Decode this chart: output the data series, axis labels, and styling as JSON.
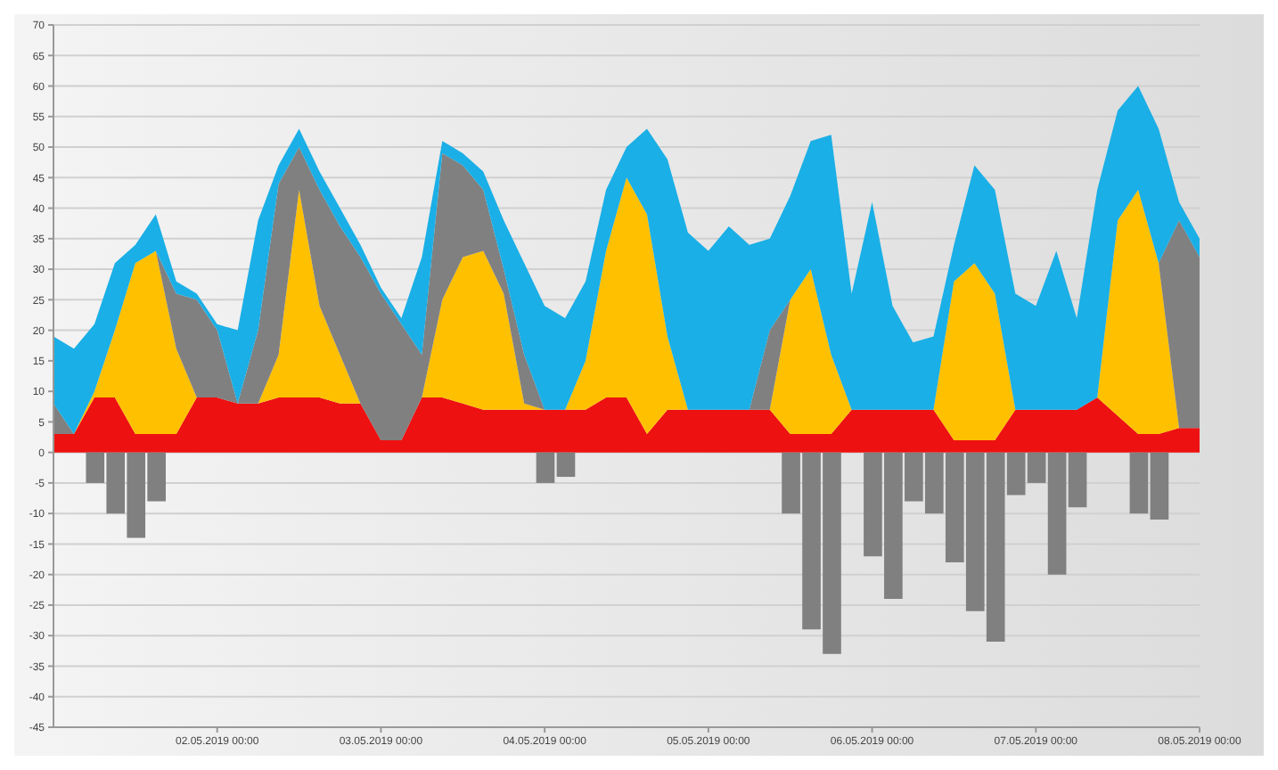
{
  "chart_data": {
    "type": "area",
    "stacked": true,
    "grid": "y",
    "ylim": [
      -45,
      70
    ],
    "yticks": [
      -45,
      -40,
      -35,
      -30,
      -25,
      -20,
      -15,
      -10,
      -5,
      0,
      5,
      10,
      15,
      20,
      25,
      30,
      35,
      40,
      45,
      50,
      55,
      60,
      65,
      70
    ],
    "xlim": [
      "2019-05-01T00:00",
      "2019-05-08T00:00"
    ],
    "xticks": [
      {
        "value": "2019-05-02T00:00",
        "label": "02.05.2019 00:00"
      },
      {
        "value": "2019-05-03T00:00",
        "label": "03.05.2019 00:00"
      },
      {
        "value": "2019-05-04T00:00",
        "label": "04.05.2019 00:00"
      },
      {
        "value": "2019-05-05T00:00",
        "label": "05.05.2019 00:00"
      },
      {
        "value": "2019-05-06T00:00",
        "label": "06.05.2019 00:00"
      },
      {
        "value": "2019-05-07T00:00",
        "label": "07.05.2019 00:00"
      },
      {
        "value": "2019-05-08T00:00",
        "label": "08.05.2019 00:00"
      }
    ],
    "x": [
      "2019-05-01T00:00",
      "2019-05-01T03:00",
      "2019-05-01T06:00",
      "2019-05-01T09:00",
      "2019-05-01T12:00",
      "2019-05-01T15:00",
      "2019-05-01T18:00",
      "2019-05-01T21:00",
      "2019-05-02T00:00",
      "2019-05-02T03:00",
      "2019-05-02T06:00",
      "2019-05-02T09:00",
      "2019-05-02T12:00",
      "2019-05-02T15:00",
      "2019-05-02T18:00",
      "2019-05-02T21:00",
      "2019-05-03T00:00",
      "2019-05-03T03:00",
      "2019-05-03T06:00",
      "2019-05-03T09:00",
      "2019-05-03T12:00",
      "2019-05-03T15:00",
      "2019-05-03T18:00",
      "2019-05-03T21:00",
      "2019-05-04T00:00",
      "2019-05-04T03:00",
      "2019-05-04T06:00",
      "2019-05-04T09:00",
      "2019-05-04T12:00",
      "2019-05-04T15:00",
      "2019-05-04T18:00",
      "2019-05-04T21:00",
      "2019-05-05T00:00",
      "2019-05-05T03:00",
      "2019-05-05T06:00",
      "2019-05-05T09:00",
      "2019-05-05T12:00",
      "2019-05-05T15:00",
      "2019-05-05T18:00",
      "2019-05-05T21:00",
      "2019-05-06T00:00",
      "2019-05-06T03:00",
      "2019-05-06T06:00",
      "2019-05-06T09:00",
      "2019-05-06T12:00",
      "2019-05-06T15:00",
      "2019-05-06T18:00",
      "2019-05-06T21:00",
      "2019-05-07T00:00",
      "2019-05-07T03:00",
      "2019-05-07T06:00",
      "2019-05-07T09:00",
      "2019-05-07T12:00",
      "2019-05-07T15:00",
      "2019-05-07T18:00",
      "2019-05-07T21:00",
      "2019-05-08T00:00"
    ],
    "series": [
      {
        "color": "#ee1111",
        "values": [
          3,
          3,
          9,
          9,
          3,
          3,
          3,
          9,
          9,
          8,
          8,
          9,
          9,
          9,
          8,
          8,
          2,
          2,
          9,
          9,
          8,
          7,
          7,
          7,
          7,
          7,
          7,
          9,
          9,
          3,
          7,
          7,
          7,
          7,
          7,
          7,
          3,
          3,
          3,
          7,
          7,
          7,
          7,
          7,
          2,
          2,
          2,
          7,
          7,
          7,
          7,
          9,
          6,
          3,
          3,
          4,
          4
        ]
      },
      {
        "color": "#ffc000",
        "values": [
          0,
          0,
          1,
          11,
          28,
          30,
          14,
          0,
          0,
          0,
          0,
          7,
          34,
          15,
          8,
          0,
          0,
          0,
          0,
          16,
          24,
          26,
          19,
          1,
          0,
          0,
          8,
          24,
          36,
          36,
          12,
          0,
          0,
          0,
          0,
          0,
          22,
          27,
          13,
          0,
          0,
          0,
          0,
          0,
          26,
          29,
          24,
          0,
          0,
          0,
          0,
          0,
          32,
          40,
          28,
          0,
          0
        ]
      },
      {
        "color": "#808080",
        "values": [
          5,
          0,
          0,
          0,
          0,
          0,
          9,
          16,
          11,
          0,
          12,
          28,
          7,
          19,
          21,
          24,
          24,
          19,
          7,
          24,
          15,
          10,
          4,
          8,
          0,
          0,
          0,
          0,
          0,
          0,
          0,
          0,
          0,
          0,
          0,
          13,
          0,
          0,
          0,
          0,
          0,
          0,
          0,
          0,
          0,
          0,
          0,
          0,
          0,
          0,
          0,
          0,
          0,
          0,
          0,
          34,
          28
        ]
      },
      {
        "color": "#1aafe6",
        "values": [
          11,
          14,
          11,
          11,
          3,
          6,
          2,
          1,
          1,
          12,
          18,
          3,
          3,
          3,
          3,
          2,
          1,
          1,
          16,
          2,
          2,
          3,
          8,
          15,
          17,
          15,
          13,
          10,
          5,
          14,
          29,
          29,
          26,
          30,
          27,
          15,
          17,
          21,
          36,
          19,
          34,
          17,
          11,
          12,
          6,
          16,
          17,
          19,
          17,
          26,
          15,
          34,
          18,
          17,
          22,
          3,
          3
        ]
      },
      {
        "type": "bar",
        "color": "#808080",
        "values": [
          0,
          0,
          -5,
          -10,
          -14,
          -8,
          0,
          0,
          0,
          0,
          0,
          0,
          0,
          0,
          0,
          0,
          0,
          0,
          0,
          0,
          0,
          0,
          0,
          0,
          -5,
          -4,
          0,
          0,
          0,
          0,
          0,
          0,
          0,
          0,
          0,
          0,
          -10,
          -29,
          -33,
          0,
          -17,
          -24,
          -8,
          -10,
          -18,
          -26,
          -31,
          -7,
          -5,
          -20,
          -9,
          0,
          0,
          -10,
          -11,
          0,
          0
        ]
      }
    ]
  }
}
